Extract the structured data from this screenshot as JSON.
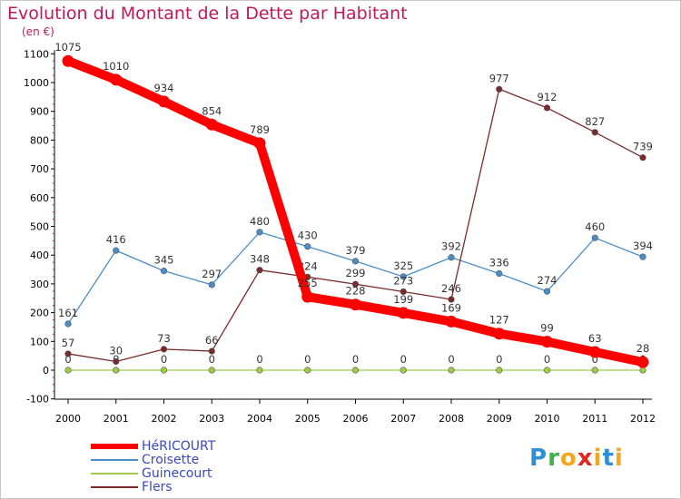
{
  "title": "Evolution du Montant de la Dette par Habitant",
  "unit_label": "(en €)",
  "logo": {
    "letters": [
      "P",
      "r",
      "o",
      "x",
      "i",
      "t",
      "i"
    ],
    "colors": [
      "#2d8fd6",
      "#3bb24a",
      "#f2a81d",
      "#e2261f",
      "#f2a81d",
      "#2d8fd6",
      "#f2a81d"
    ]
  },
  "chart_data": {
    "type": "line",
    "title": "Evolution du Montant de la Dette par Habitant",
    "ylabel": "(en €)",
    "x": [
      "2000",
      "2001",
      "2002",
      "2003",
      "2004",
      "2005",
      "2006",
      "2007",
      "2008",
      "2009",
      "2010",
      "2011",
      "2012"
    ],
    "ylim": [
      -100,
      1100
    ],
    "yticks": [
      -100,
      0,
      100,
      200,
      300,
      400,
      500,
      600,
      700,
      800,
      900,
      1000,
      1100
    ],
    "grid": false,
    "legend_position": "bottom-left",
    "series": [
      {
        "name": "HéRICOURT",
        "color": "#ff0000",
        "values": [
          1075,
          1010,
          934,
          854,
          789,
          255,
          228,
          199,
          169,
          127,
          99,
          63,
          28
        ]
      },
      {
        "name": "Croisette",
        "color": "#4a8ec8",
        "values": [
          161,
          416,
          345,
          297,
          480,
          430,
          379,
          325,
          392,
          336,
          274,
          460,
          394
        ]
      },
      {
        "name": "Guinecourt",
        "color": "#9ccc4a",
        "values": [
          0,
          0,
          0,
          0,
          0,
          0,
          0,
          0,
          0,
          0,
          0,
          0,
          0
        ]
      },
      {
        "name": "Flers",
        "color": "#7a2a2a",
        "values": [
          57,
          30,
          73,
          66,
          348,
          324,
          299,
          273,
          246,
          977,
          912,
          827,
          739
        ],
        "years": [
          "2000",
          "2001",
          "2002",
          "2003",
          "2004",
          "2005",
          "2006",
          "2007",
          "2008",
          "2009",
          "2010",
          "2011",
          "2012"
        ]
      }
    ]
  }
}
